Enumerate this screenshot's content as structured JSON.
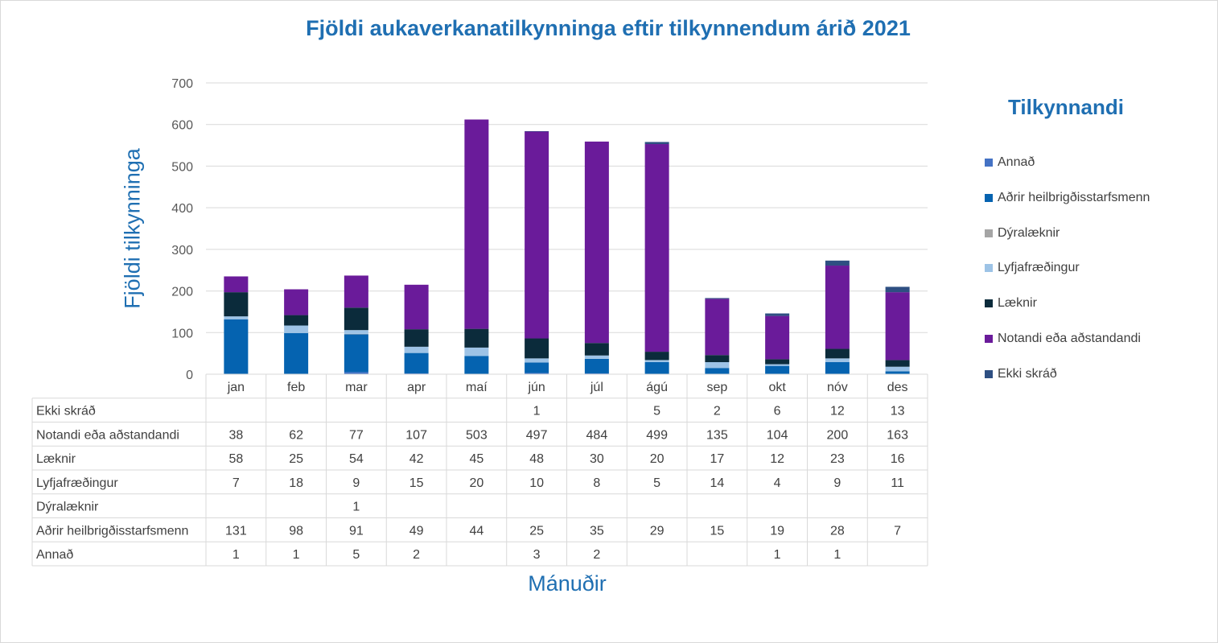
{
  "chart_data": {
    "type": "bar",
    "stacked": true,
    "title": "Fjöldi aukaverkanatilkynninga eftir tilkynnendum árið 2021",
    "xlabel": "Mánuðir",
    "ylabel": "Fjöldi tilkynninga",
    "legend_title": "Tilkynnandi",
    "legend_position": "right",
    "grid": true,
    "ylim": [
      0,
      700
    ],
    "yticks": [
      "0",
      "100",
      "200",
      "300",
      "400",
      "500",
      "600",
      "700"
    ],
    "categories": [
      "jan",
      "feb",
      "mar",
      "apr",
      "maí",
      "jún",
      "júl",
      "ágú",
      "sep",
      "okt",
      "nóv",
      "des"
    ],
    "series": [
      {
        "name": "Annað",
        "color": "#4472c4",
        "values": [
          1,
          1,
          5,
          2,
          null,
          3,
          2,
          null,
          null,
          1,
          1,
          null
        ]
      },
      {
        "name": "Aðrir heilbrigðisstarfsmenn",
        "color": "#0563b0",
        "values": [
          131,
          98,
          91,
          49,
          44,
          25,
          35,
          29,
          15,
          19,
          28,
          7
        ]
      },
      {
        "name": "Dýralæknir",
        "color": "#a5a5a5",
        "values": [
          null,
          null,
          1,
          null,
          null,
          null,
          null,
          null,
          null,
          null,
          null,
          null
        ]
      },
      {
        "name": "Lyfjafræðingur",
        "color": "#9dc3e6",
        "values": [
          7,
          18,
          9,
          15,
          20,
          10,
          8,
          5,
          14,
          4,
          9,
          11
        ]
      },
      {
        "name": "Læknir",
        "color": "#0b2b3b",
        "values": [
          58,
          25,
          54,
          42,
          45,
          48,
          30,
          20,
          17,
          12,
          23,
          16
        ]
      },
      {
        "name": "Notandi eða aðstandandi",
        "color": "#6a1b9a",
        "values": [
          38,
          62,
          77,
          107,
          503,
          497,
          484,
          499,
          135,
          104,
          200,
          163
        ]
      },
      {
        "name": "Ekki skráð",
        "color": "#2e4f82",
        "values": [
          null,
          null,
          null,
          null,
          null,
          1,
          null,
          5,
          2,
          6,
          12,
          13
        ]
      }
    ],
    "table_rows": [
      "Ekki skráð",
      "Notandi eða aðstandandi",
      "Læknir",
      "Lyfjafræðingur",
      "Dýralæknir",
      "Aðrir heilbrigðisstarfsmenn",
      "Annað"
    ]
  }
}
